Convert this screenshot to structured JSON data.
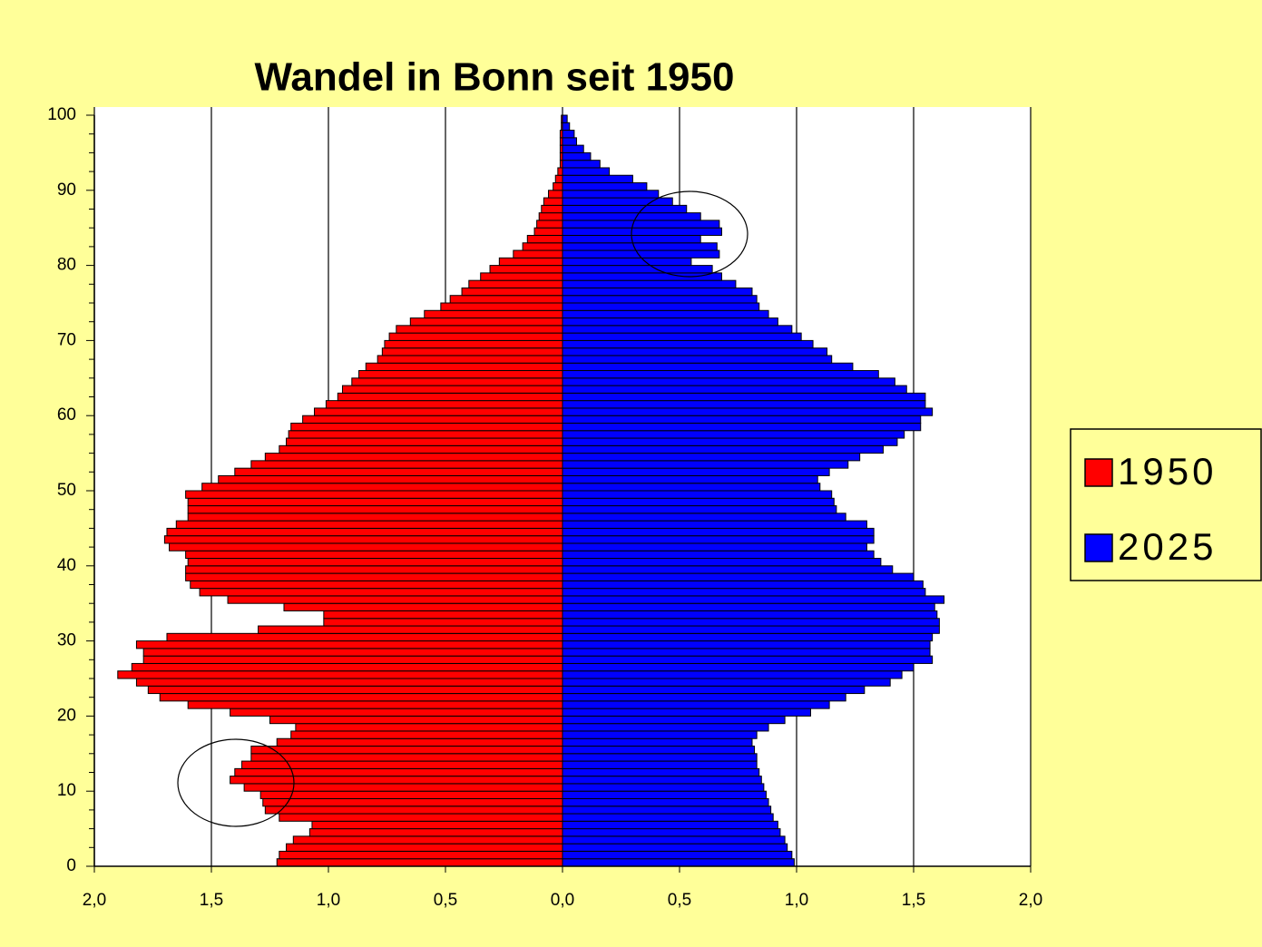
{
  "chart_data": {
    "type": "pyramid",
    "title": "Wandel in Bonn seit 1950",
    "y": [
      0,
      1,
      2,
      3,
      4,
      5,
      6,
      7,
      8,
      9,
      10,
      11,
      12,
      13,
      14,
      15,
      16,
      17,
      18,
      19,
      20,
      21,
      22,
      23,
      24,
      25,
      26,
      27,
      28,
      29,
      30,
      31,
      32,
      33,
      34,
      35,
      36,
      37,
      38,
      39,
      40,
      41,
      42,
      43,
      44,
      45,
      46,
      47,
      48,
      49,
      50,
      51,
      52,
      53,
      54,
      55,
      56,
      57,
      58,
      59,
      60,
      61,
      62,
      63,
      64,
      65,
      66,
      67,
      68,
      69,
      70,
      71,
      72,
      73,
      74,
      75,
      76,
      77,
      78,
      79,
      80,
      81,
      82,
      83,
      84,
      85,
      86,
      87,
      88,
      89,
      90,
      91,
      92,
      93,
      94,
      95,
      96,
      97,
      98,
      99
    ],
    "series": [
      {
        "name": "1950",
        "color": "#ff0000",
        "values": [
          1.22,
          1.21,
          1.18,
          1.15,
          1.08,
          1.07,
          1.21,
          1.27,
          1.28,
          1.29,
          1.36,
          1.42,
          1.4,
          1.37,
          1.33,
          1.33,
          1.22,
          1.16,
          1.14,
          1.25,
          1.42,
          1.6,
          1.72,
          1.77,
          1.82,
          1.9,
          1.84,
          1.79,
          1.79,
          1.82,
          1.69,
          1.3,
          1.02,
          1.02,
          1.19,
          1.43,
          1.55,
          1.59,
          1.61,
          1.61,
          1.6,
          1.61,
          1.68,
          1.7,
          1.69,
          1.65,
          1.6,
          1.6,
          1.6,
          1.61,
          1.54,
          1.47,
          1.4,
          1.33,
          1.27,
          1.21,
          1.18,
          1.17,
          1.16,
          1.11,
          1.06,
          1.01,
          0.96,
          0.94,
          0.9,
          0.87,
          0.84,
          0.79,
          0.77,
          0.76,
          0.74,
          0.71,
          0.65,
          0.59,
          0.52,
          0.48,
          0.43,
          0.4,
          0.35,
          0.31,
          0.27,
          0.21,
          0.17,
          0.15,
          0.12,
          0.11,
          0.1,
          0.09,
          0.08,
          0.06,
          0.04,
          0.03,
          0.02,
          0.01,
          0.01,
          0.01,
          0.01,
          0.01,
          0.005,
          0.005
        ]
      },
      {
        "name": "2025",
        "color": "#0000ff",
        "values": [
          0.99,
          0.98,
          0.96,
          0.95,
          0.93,
          0.92,
          0.9,
          0.89,
          0.88,
          0.87,
          0.86,
          0.85,
          0.84,
          0.83,
          0.83,
          0.82,
          0.81,
          0.83,
          0.88,
          0.95,
          1.06,
          1.14,
          1.21,
          1.29,
          1.4,
          1.45,
          1.5,
          1.58,
          1.57,
          1.57,
          1.58,
          1.61,
          1.61,
          1.6,
          1.59,
          1.63,
          1.55,
          1.54,
          1.5,
          1.41,
          1.36,
          1.33,
          1.3,
          1.33,
          1.33,
          1.3,
          1.21,
          1.17,
          1.16,
          1.15,
          1.1,
          1.09,
          1.14,
          1.22,
          1.27,
          1.37,
          1.43,
          1.46,
          1.53,
          1.53,
          1.58,
          1.55,
          1.55,
          1.47,
          1.42,
          1.35,
          1.24,
          1.15,
          1.13,
          1.07,
          1.02,
          0.98,
          0.92,
          0.88,
          0.84,
          0.83,
          0.81,
          0.74,
          0.68,
          0.64,
          0.55,
          0.67,
          0.66,
          0.59,
          0.68,
          0.67,
          0.59,
          0.53,
          0.47,
          0.41,
          0.36,
          0.3,
          0.2,
          0.16,
          0.12,
          0.09,
          0.06,
          0.05,
          0.03,
          0.02
        ]
      }
    ],
    "left_series": 0,
    "xlim": [
      -2,
      2
    ],
    "xticks": [
      {
        "value": -2,
        "label": "2,0"
      },
      {
        "value": -1.5,
        "label": "1,5"
      },
      {
        "value": -1,
        "label": "1,0"
      },
      {
        "value": -0.5,
        "label": "0,5"
      },
      {
        "value": 0,
        "label": "0,0"
      },
      {
        "value": 0.5,
        "label": "0,5"
      },
      {
        "value": 1,
        "label": "1,0"
      },
      {
        "value": 1.5,
        "label": "1,5"
      },
      {
        "value": 2,
        "label": "2,0"
      }
    ],
    "ylim": [
      0,
      100
    ],
    "yticks": [
      0,
      10,
      20,
      30,
      40,
      50,
      60,
      70,
      80,
      90,
      100
    ],
    "yminorticks": [
      2.5,
      5,
      7.5,
      12.5,
      15,
      17.5,
      22.5,
      25,
      27.5,
      32.5,
      35,
      37.5,
      42.5,
      45,
      47.5,
      52.5,
      55,
      57.5,
      62.5,
      65,
      67.5,
      72.5,
      75,
      77.5,
      82.5,
      85,
      87.5,
      92.5,
      95,
      97.5
    ],
    "grid": true,
    "legend": "right"
  }
}
